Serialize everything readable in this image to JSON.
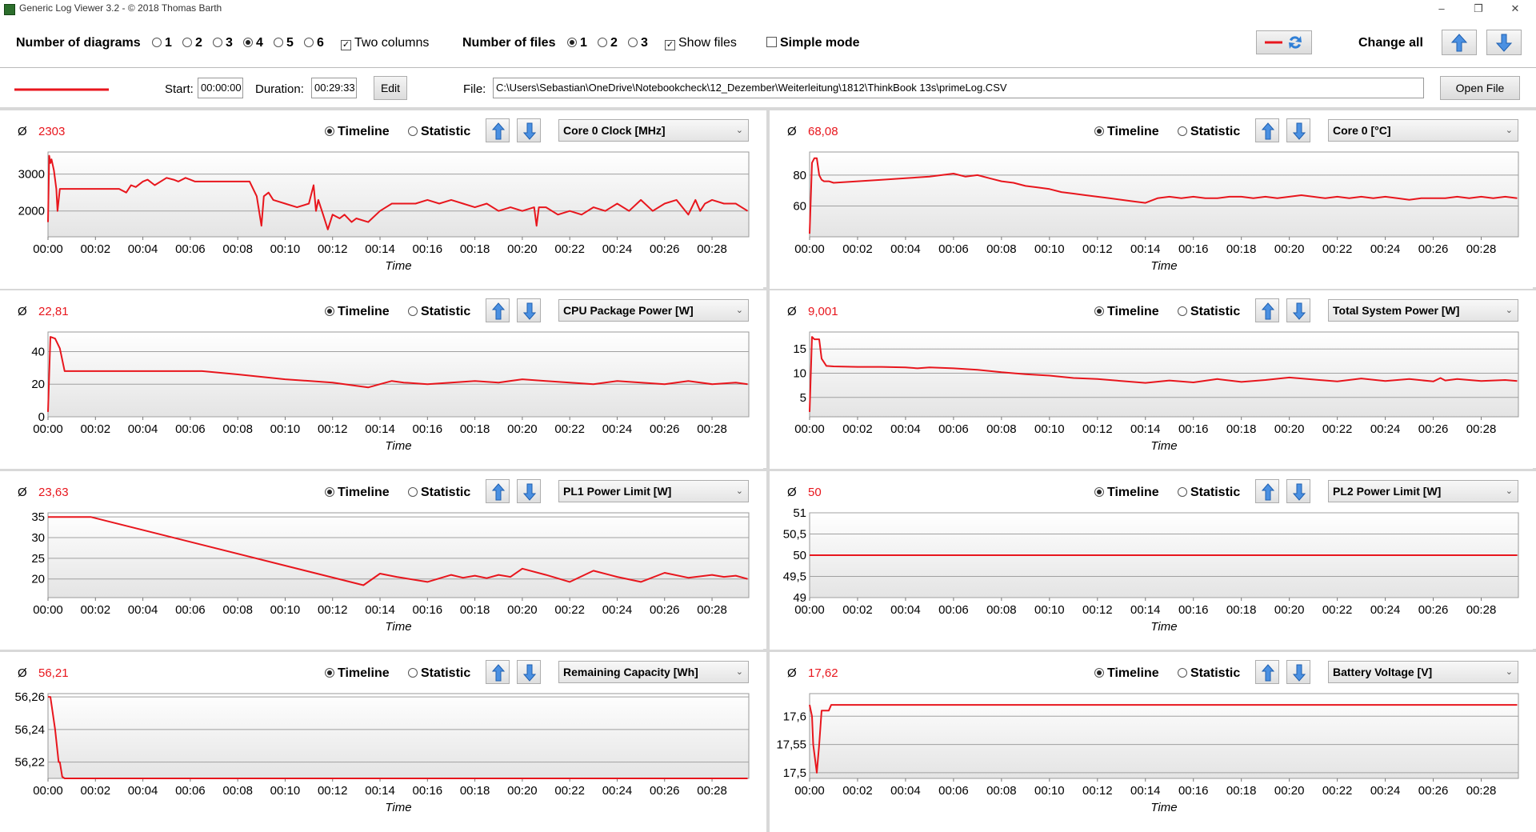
{
  "window": {
    "title": "Generic Log Viewer 3.2 - © 2018 Thomas Barth",
    "minimize": "–",
    "maximize": "❐",
    "close": "✕"
  },
  "toolbar": {
    "num_diagrams_label": "Number of diagrams",
    "diagram_options": [
      "1",
      "2",
      "3",
      "4",
      "5",
      "6"
    ],
    "diagram_selected": "4",
    "two_columns_label": "Two columns",
    "two_columns_checked": true,
    "num_files_label": "Number of files",
    "file_options": [
      "1",
      "2",
      "3"
    ],
    "file_selected": "1",
    "show_files_label": "Show files",
    "show_files_checked": true,
    "simple_mode_label": "Simple mode",
    "simple_mode_checked": false,
    "change_all_label": "Change all"
  },
  "file_row": {
    "start_label": "Start:",
    "start_value": "00:00:00",
    "duration_label": "Duration:",
    "duration_value": "00:29:33",
    "edit_label": "Edit",
    "file_label": "File:",
    "file_path": "C:\\Users\\Sebastian\\OneDrive\\Notebookcheck\\12_Dezember\\Weiterleitung\\1812\\ThinkBook 13s\\primeLog.CSV",
    "open_file_label": "Open File"
  },
  "colors": {
    "series": "#e8161d",
    "grid_line": "#a0a0a0"
  },
  "common": {
    "avg_symbol": "Ø",
    "timeline_label": "Timeline",
    "statistic_label": "Statistic",
    "x_axis_label": "Time",
    "x_ticks": [
      "00:00",
      "00:02",
      "00:04",
      "00:06",
      "00:08",
      "00:10",
      "00:12",
      "00:14",
      "00:16",
      "00:18",
      "00:20",
      "00:22",
      "00:24",
      "00:26",
      "00:28"
    ]
  },
  "panels": [
    {
      "avg": "2303",
      "metric": "Core 0 Clock [MHz]",
      "mode": "Timeline",
      "chart_data": {
        "type": "line",
        "x_unit": "minutes",
        "xlim": [
          0,
          29.55
        ],
        "ylim": [
          1300,
          3600
        ],
        "yticks": [
          2000,
          3000
        ],
        "ytick_labels": [
          "2000",
          "3000"
        ],
        "series": [
          {
            "x": [
              0,
              0.05,
              0.1,
              0.15,
              0.25,
              0.35,
              0.4,
              0.5,
              0.6,
              1,
              2,
              3,
              3.3,
              3.5,
              3.7,
              4,
              4.2,
              4.5,
              5,
              5.3,
              5.5,
              5.8,
              6,
              6.2,
              6.5,
              7,
              7.5,
              8,
              8.5,
              8.8,
              9,
              9.1,
              9.3,
              9.5,
              10,
              10.5,
              11,
              11.2,
              11.3,
              11.4,
              11.6,
              11.8,
              12,
              12.3,
              12.5,
              12.8,
              13,
              13.5,
              14,
              14.5,
              15,
              15.5,
              16,
              16.5,
              17,
              17.5,
              18,
              18.5,
              19,
              19.5,
              20,
              20.5,
              20.6,
              20.7,
              21,
              21.5,
              22,
              22.5,
              23,
              23.5,
              24,
              24.5,
              25,
              25.5,
              26,
              26.5,
              27,
              27.3,
              27.5,
              27.7,
              28,
              28.5,
              29,
              29.5
            ],
            "y": [
              1700,
              3500,
              3300,
              3400,
              3100,
              2600,
              2000,
              2600,
              2600,
              2600,
              2600,
              2600,
              2500,
              2700,
              2650,
              2800,
              2850,
              2700,
              2900,
              2850,
              2800,
              2900,
              2850,
              2800,
              2800,
              2800,
              2800,
              2800,
              2800,
              2400,
              1600,
              2400,
              2500,
              2300,
              2200,
              2100,
              2200,
              2700,
              2000,
              2300,
              1900,
              1500,
              1900,
              1800,
              1900,
              1700,
              1800,
              1700,
              2000,
              2200,
              2200,
              2200,
              2300,
              2200,
              2300,
              2200,
              2100,
              2200,
              2000,
              2100,
              2000,
              2100,
              1600,
              2100,
              2100,
              1900,
              2000,
              1900,
              2100,
              2000,
              2200,
              2000,
              2300,
              2000,
              2200,
              2300,
              1900,
              2300,
              2000,
              2200,
              2300,
              2200,
              2200,
              2000
            ]
          }
        ]
      }
    },
    {
      "avg": "68,08",
      "metric": "Core 0 [°C]",
      "mode": "Timeline",
      "chart_data": {
        "type": "line",
        "x_unit": "minutes",
        "xlim": [
          0,
          29.55
        ],
        "ylim": [
          40,
          95
        ],
        "yticks": [
          60,
          80
        ],
        "ytick_labels": [
          "60",
          "80"
        ],
        "series": [
          {
            "x": [
              0,
              0.1,
              0.2,
              0.3,
              0.4,
              0.5,
              0.6,
              0.8,
              1,
              2,
              3,
              4,
              5,
              5.5,
              6,
              6.5,
              7,
              7.5,
              8,
              8.5,
              9,
              9.5,
              10,
              10.5,
              11,
              11.5,
              12,
              12.5,
              13,
              13.5,
              14,
              14.5,
              15,
              15.5,
              16,
              16.5,
              17,
              17.5,
              18,
              18.5,
              19,
              19.5,
              20,
              20.5,
              21,
              21.5,
              22,
              22.5,
              23,
              23.5,
              24,
              24.5,
              25,
              25.5,
              26,
              26.5,
              27,
              27.5,
              28,
              28.5,
              29,
              29.5
            ],
            "y": [
              42,
              88,
              91,
              91,
              80,
              77,
              76,
              76,
              75,
              76,
              77,
              78,
              79,
              80,
              81,
              79,
              80,
              78,
              76,
              75,
              73,
              72,
              71,
              69,
              68,
              67,
              66,
              65,
              64,
              63,
              62,
              65,
              66,
              65,
              66,
              65,
              65,
              66,
              66,
              65,
              66,
              65,
              66,
              67,
              66,
              65,
              66,
              65,
              66,
              65,
              66,
              65,
              64,
              65,
              65,
              65,
              66,
              65,
              66,
              65,
              66,
              65
            ]
          }
        ]
      }
    },
    {
      "avg": "22,81",
      "metric": "CPU Package Power [W]",
      "mode": "Timeline",
      "chart_data": {
        "type": "line",
        "x_unit": "minutes",
        "xlim": [
          0,
          29.55
        ],
        "ylim": [
          0,
          52
        ],
        "yticks": [
          0,
          20,
          40
        ],
        "ytick_labels": [
          "0",
          "20",
          "40"
        ],
        "series": [
          {
            "x": [
              0,
              0.1,
              0.3,
              0.5,
              0.7,
              1,
              2,
              4,
              6,
              6.5,
              8,
              10,
              12,
              13.5,
              14,
              14.5,
              15,
              16,
              17,
              18,
              19,
              20,
              21,
              22,
              23,
              24,
              25,
              26,
              27,
              28,
              29,
              29.5
            ],
            "y": [
              3,
              49,
              48,
              42,
              28,
              28,
              28,
              28,
              28,
              28,
              26,
              23,
              21,
              18,
              20,
              22,
              21,
              20,
              21,
              22,
              21,
              23,
              22,
              21,
              20,
              22,
              21,
              20,
              22,
              20,
              21,
              20
            ]
          }
        ]
      }
    },
    {
      "avg": "9,001",
      "metric": "Total System Power [W]",
      "mode": "Timeline",
      "chart_data": {
        "type": "line",
        "x_unit": "minutes",
        "xlim": [
          0,
          29.55
        ],
        "ylim": [
          1,
          18.5
        ],
        "yticks": [
          5,
          10,
          15
        ],
        "ytick_labels": [
          "5",
          "10",
          "15"
        ],
        "series": [
          {
            "x": [
              0,
              0.1,
              0.2,
              0.4,
              0.5,
              0.7,
              1,
              2,
              3,
              4,
              4.5,
              5,
              6,
              7,
              8,
              9,
              10,
              11,
              12,
              13,
              14,
              15,
              16,
              17,
              18,
              19,
              20,
              21,
              22,
              23,
              24,
              25,
              26,
              26.3,
              26.5,
              27,
              28,
              29,
              29.5
            ],
            "y": [
              2,
              17.5,
              17,
              17,
              13,
              11.5,
              11.4,
              11.3,
              11.3,
              11.2,
              11,
              11.2,
              11,
              10.7,
              10.2,
              9.8,
              9.5,
              9,
              8.8,
              8.4,
              8,
              8.5,
              8.1,
              8.8,
              8.2,
              8.6,
              9.1,
              8.7,
              8.3,
              8.9,
              8.4,
              8.8,
              8.3,
              9,
              8.5,
              8.8,
              8.4,
              8.6,
              8.4
            ]
          }
        ]
      }
    },
    {
      "avg": "23,63",
      "metric": "PL1 Power Limit [W]",
      "mode": "Timeline",
      "chart_data": {
        "type": "line",
        "x_unit": "minutes",
        "xlim": [
          0,
          29.55
        ],
        "ylim": [
          15.5,
          36
        ],
        "yticks": [
          20,
          25,
          30,
          35
        ],
        "ytick_labels": [
          "20",
          "25",
          "30",
          "35"
        ],
        "series": [
          {
            "x": [
              0,
              1.8,
              13.3,
              14,
              14.7,
              16,
              17,
              17.5,
              18,
              18.5,
              19,
              19.5,
              20,
              21,
              22,
              23,
              24,
              25,
              26,
              27,
              28,
              28.5,
              29,
              29.5
            ],
            "y": [
              35,
              35,
              18.5,
              21.3,
              20.5,
              19.3,
              21,
              20.3,
              20.8,
              20.2,
              21,
              20.5,
              22.5,
              21,
              19.3,
              22,
              20.5,
              19.3,
              21.5,
              20.3,
              21,
              20.5,
              20.8,
              20
            ]
          }
        ]
      }
    },
    {
      "avg": "50",
      "metric": "PL2 Power Limit [W]",
      "mode": "Timeline",
      "chart_data": {
        "type": "line",
        "x_unit": "minutes",
        "xlim": [
          0,
          29.55
        ],
        "ylim": [
          49,
          51
        ],
        "yticks": [
          49,
          49.5,
          50,
          50.5,
          51
        ],
        "ytick_labels": [
          "49",
          "49,5",
          "50",
          "50,5",
          "51"
        ],
        "series": [
          {
            "x": [
              0,
              29.5
            ],
            "y": [
              50,
              50
            ]
          }
        ]
      }
    },
    {
      "avg": "56,21",
      "metric": "Remaining Capacity [Wh]",
      "mode": "Timeline",
      "chart_data": {
        "type": "line",
        "x_unit": "minutes",
        "xlim": [
          0,
          29.55
        ],
        "ylim": [
          56.21,
          56.262
        ],
        "yticks": [
          56.22,
          56.24,
          56.26
        ],
        "ytick_labels": [
          "56,22",
          "56,24",
          "56,26"
        ],
        "series": [
          {
            "x": [
              0,
              0.1,
              0.3,
              0.45,
              0.5,
              0.6,
              0.7,
              29.5
            ],
            "y": [
              56.26,
              56.26,
              56.24,
              56.22,
              56.22,
              56.211,
              56.21,
              56.21
            ]
          }
        ]
      }
    },
    {
      "avg": "17,62",
      "metric": "Battery Voltage [V]",
      "mode": "Timeline",
      "chart_data": {
        "type": "line",
        "x_unit": "minutes",
        "xlim": [
          0,
          29.55
        ],
        "ylim": [
          17.49,
          17.64
        ],
        "yticks": [
          17.5,
          17.55,
          17.6
        ],
        "ytick_labels": [
          "17,5",
          "17,55",
          "17,6"
        ],
        "series": [
          {
            "x": [
              0,
              0.1,
              0.15,
              0.3,
              0.4,
              0.5,
              0.6,
              0.8,
              0.9,
              1.0,
              29.5
            ],
            "y": [
              17.62,
              17.6,
              17.55,
              17.5,
              17.55,
              17.61,
              17.61,
              17.61,
              17.62,
              17.62,
              17.62
            ]
          }
        ]
      }
    }
  ]
}
